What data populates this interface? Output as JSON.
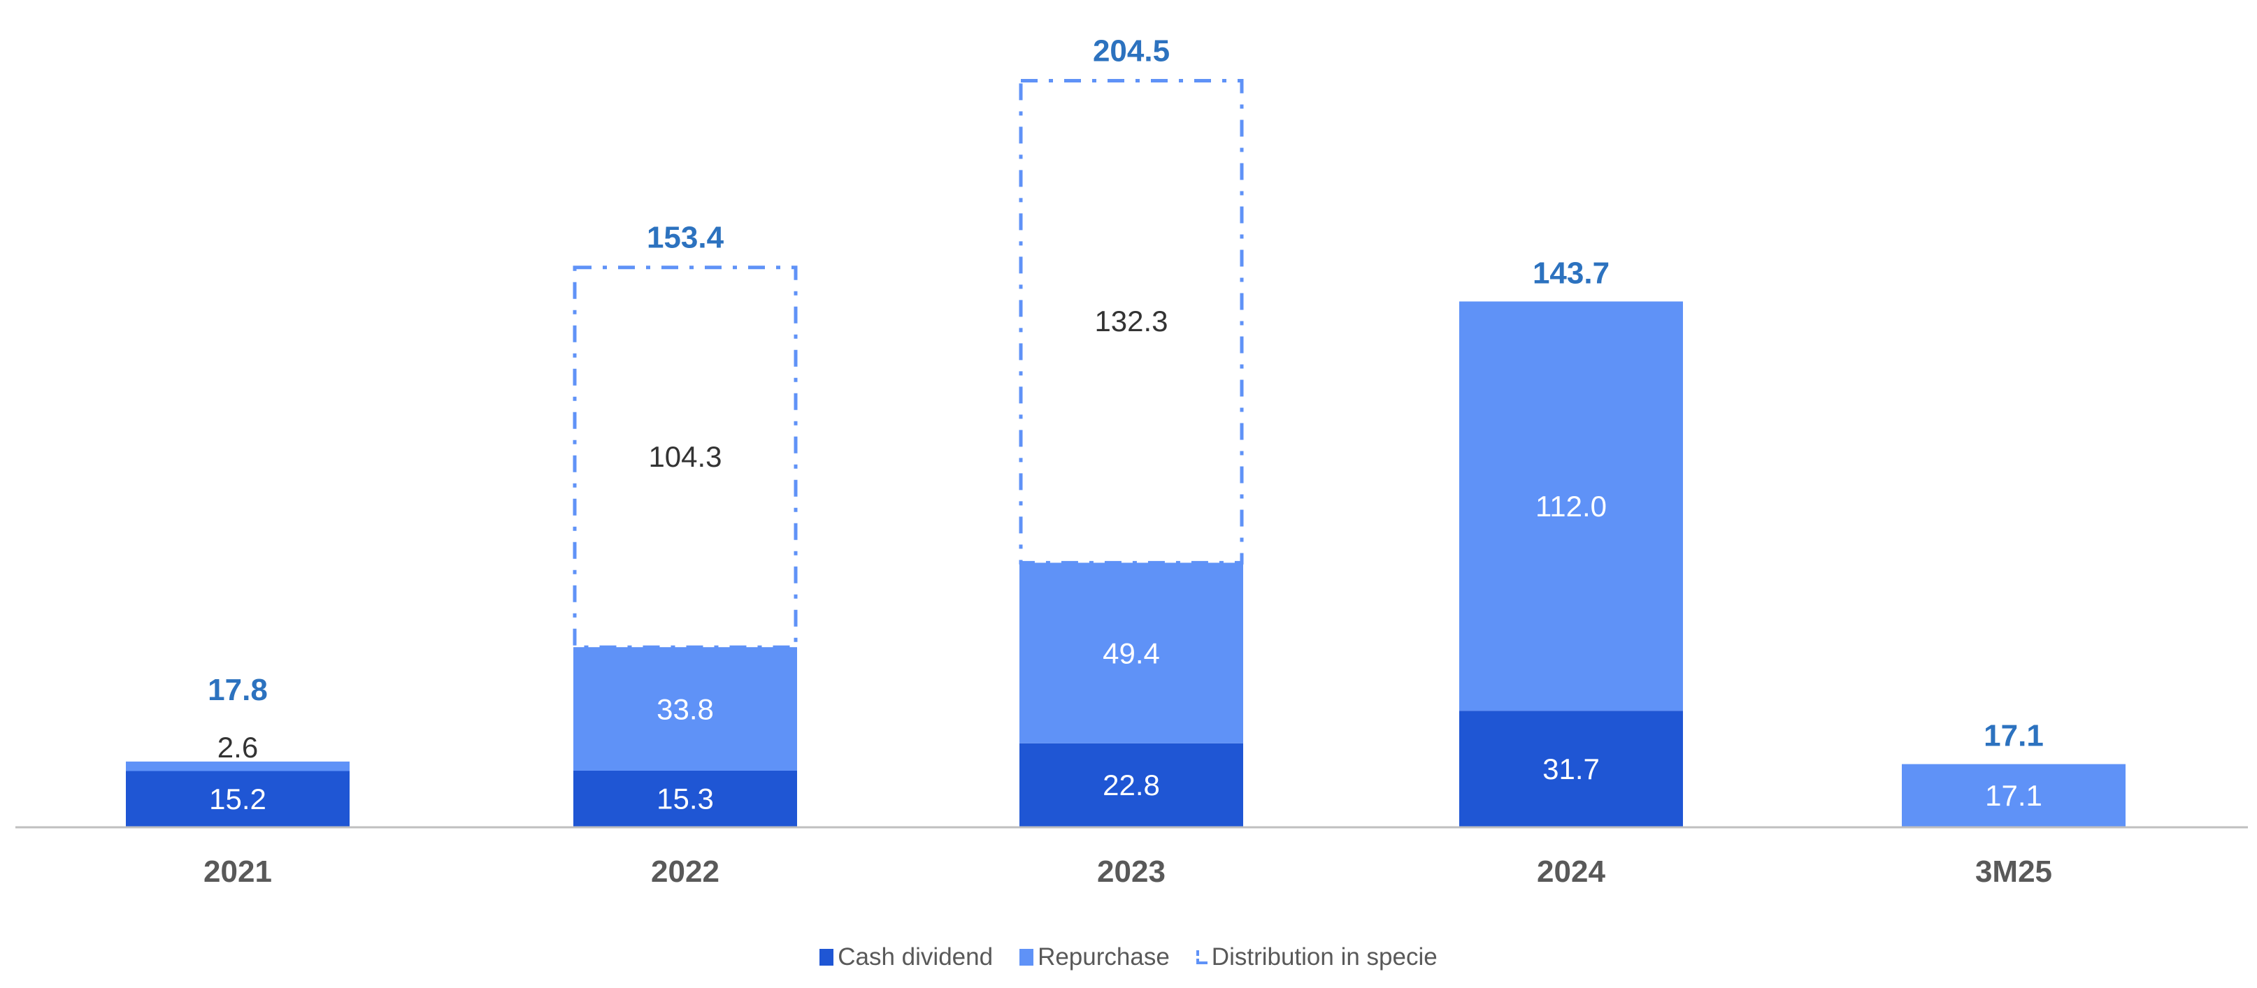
{
  "chart_data": {
    "type": "bar",
    "stacked": true,
    "title": "",
    "xlabel": "",
    "ylabel": "",
    "ylim": [
      0,
      210
    ],
    "grid": false,
    "categories": [
      "2021",
      "2022",
      "2023",
      "2024",
      "3M25"
    ],
    "series": [
      {
        "name": "Cash dividend",
        "values": [
          15.2,
          15.3,
          22.8,
          31.7,
          null
        ],
        "color": "#1f56d4",
        "style": "solid",
        "label_color": "#ffffff"
      },
      {
        "name": "Repurchase",
        "values": [
          2.6,
          33.8,
          49.4,
          112.0,
          17.1
        ],
        "color": "#5f92f7",
        "style": "solid",
        "label_color": "#ffffff"
      },
      {
        "name": "Distribution in specie",
        "values": [
          null,
          104.3,
          132.3,
          null,
          null
        ],
        "color": "#5f92f7",
        "style": "dash-dot-outline",
        "label_color": "#333333"
      }
    ],
    "data_labels": [
      [
        "15.2",
        "15.3",
        "22.8",
        "31.7",
        ""
      ],
      [
        "2.6",
        "33.8",
        "49.4",
        "112.0",
        "17.1"
      ],
      [
        "",
        "104.3",
        "132.3",
        "",
        ""
      ]
    ],
    "totals": [
      "17.8",
      "153.4",
      "204.5",
      "143.7",
      "17.1"
    ],
    "total_values": [
      17.8,
      153.4,
      204.5,
      143.7,
      17.1
    ],
    "total_color": "#2c72bf",
    "axis_label_color": "#595959",
    "axis_line_color": "#bfbfbf",
    "legend": {
      "position": "bottom-center"
    }
  }
}
